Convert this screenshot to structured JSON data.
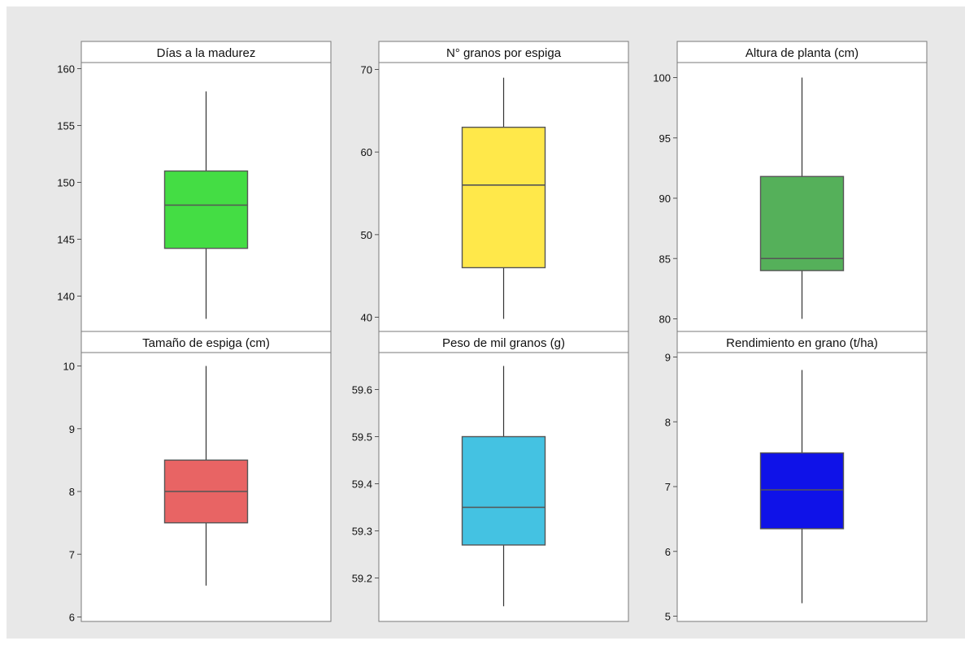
{
  "chart_data": [
    {
      "type": "box",
      "title": "Días a la madurez",
      "ylim": [
        136.5,
        160.5
      ],
      "yticks": [
        140,
        145,
        150,
        155,
        160
      ],
      "box": {
        "min": 138,
        "q1": 144.2,
        "median": 148,
        "q3": 151,
        "max": 158
      },
      "color": "#44dd44"
    },
    {
      "type": "box",
      "title": "N° granos por espiga",
      "ylim": [
        39.0,
        70.5
      ],
      "yticks": [
        40,
        50,
        60,
        70
      ],
      "box": {
        "min": 39.8,
        "q1": 46,
        "median": 56,
        "q3": 63,
        "max": 69
      },
      "color": "#ffe84a"
    },
    {
      "type": "box",
      "title": "Altura de planta (cm)",
      "ylim": [
        79.5,
        100.5
      ],
      "yticks": [
        80,
        85,
        90,
        95,
        100
      ],
      "box": {
        "min": 80,
        "q1": 84,
        "median": 85,
        "q3": 91.8,
        "max": 100
      },
      "color": "#55b05a"
    },
    {
      "type": "box",
      "title": "Tamaño de espiga (cm)",
      "ylim": [
        5.9,
        10.2
      ],
      "yticks": [
        6,
        7,
        8,
        9,
        10
      ],
      "box": {
        "min": 6.5,
        "q1": 7.5,
        "median": 8,
        "q3": 8.5,
        "max": 10
      },
      "color": "#e86464"
    },
    {
      "type": "box",
      "title": "Peso de mil granos (g)",
      "ylim": [
        59.11,
        59.68
      ],
      "yticks": [
        59.2,
        59.3,
        59.4,
        59.5,
        59.6
      ],
      "yticklabels": [
        "59.2",
        "59.3",
        "59.4",
        "59.5",
        "59.6"
      ],
      "box": {
        "min": 59.14,
        "q1": 59.27,
        "median": 59.35,
        "q3": 59.5,
        "max": 59.65
      },
      "color": "#44c2e2"
    },
    {
      "type": "box",
      "title": "Rendimiento en grano (t/ha)",
      "ylim": [
        4.95,
        9.0
      ],
      "yticks": [
        5,
        6,
        7,
        8,
        9
      ],
      "box": {
        "min": 5.2,
        "q1": 6.35,
        "median": 6.95,
        "q3": 7.52,
        "max": 8.8
      },
      "color": "#0f12e8"
    }
  ],
  "colors": {
    "figure_background": "#e8e8e8",
    "panel_background": "#ffffff",
    "strip_background": "#ffffff",
    "frame": "#7a7a7a",
    "box_outline": "#555555"
  }
}
